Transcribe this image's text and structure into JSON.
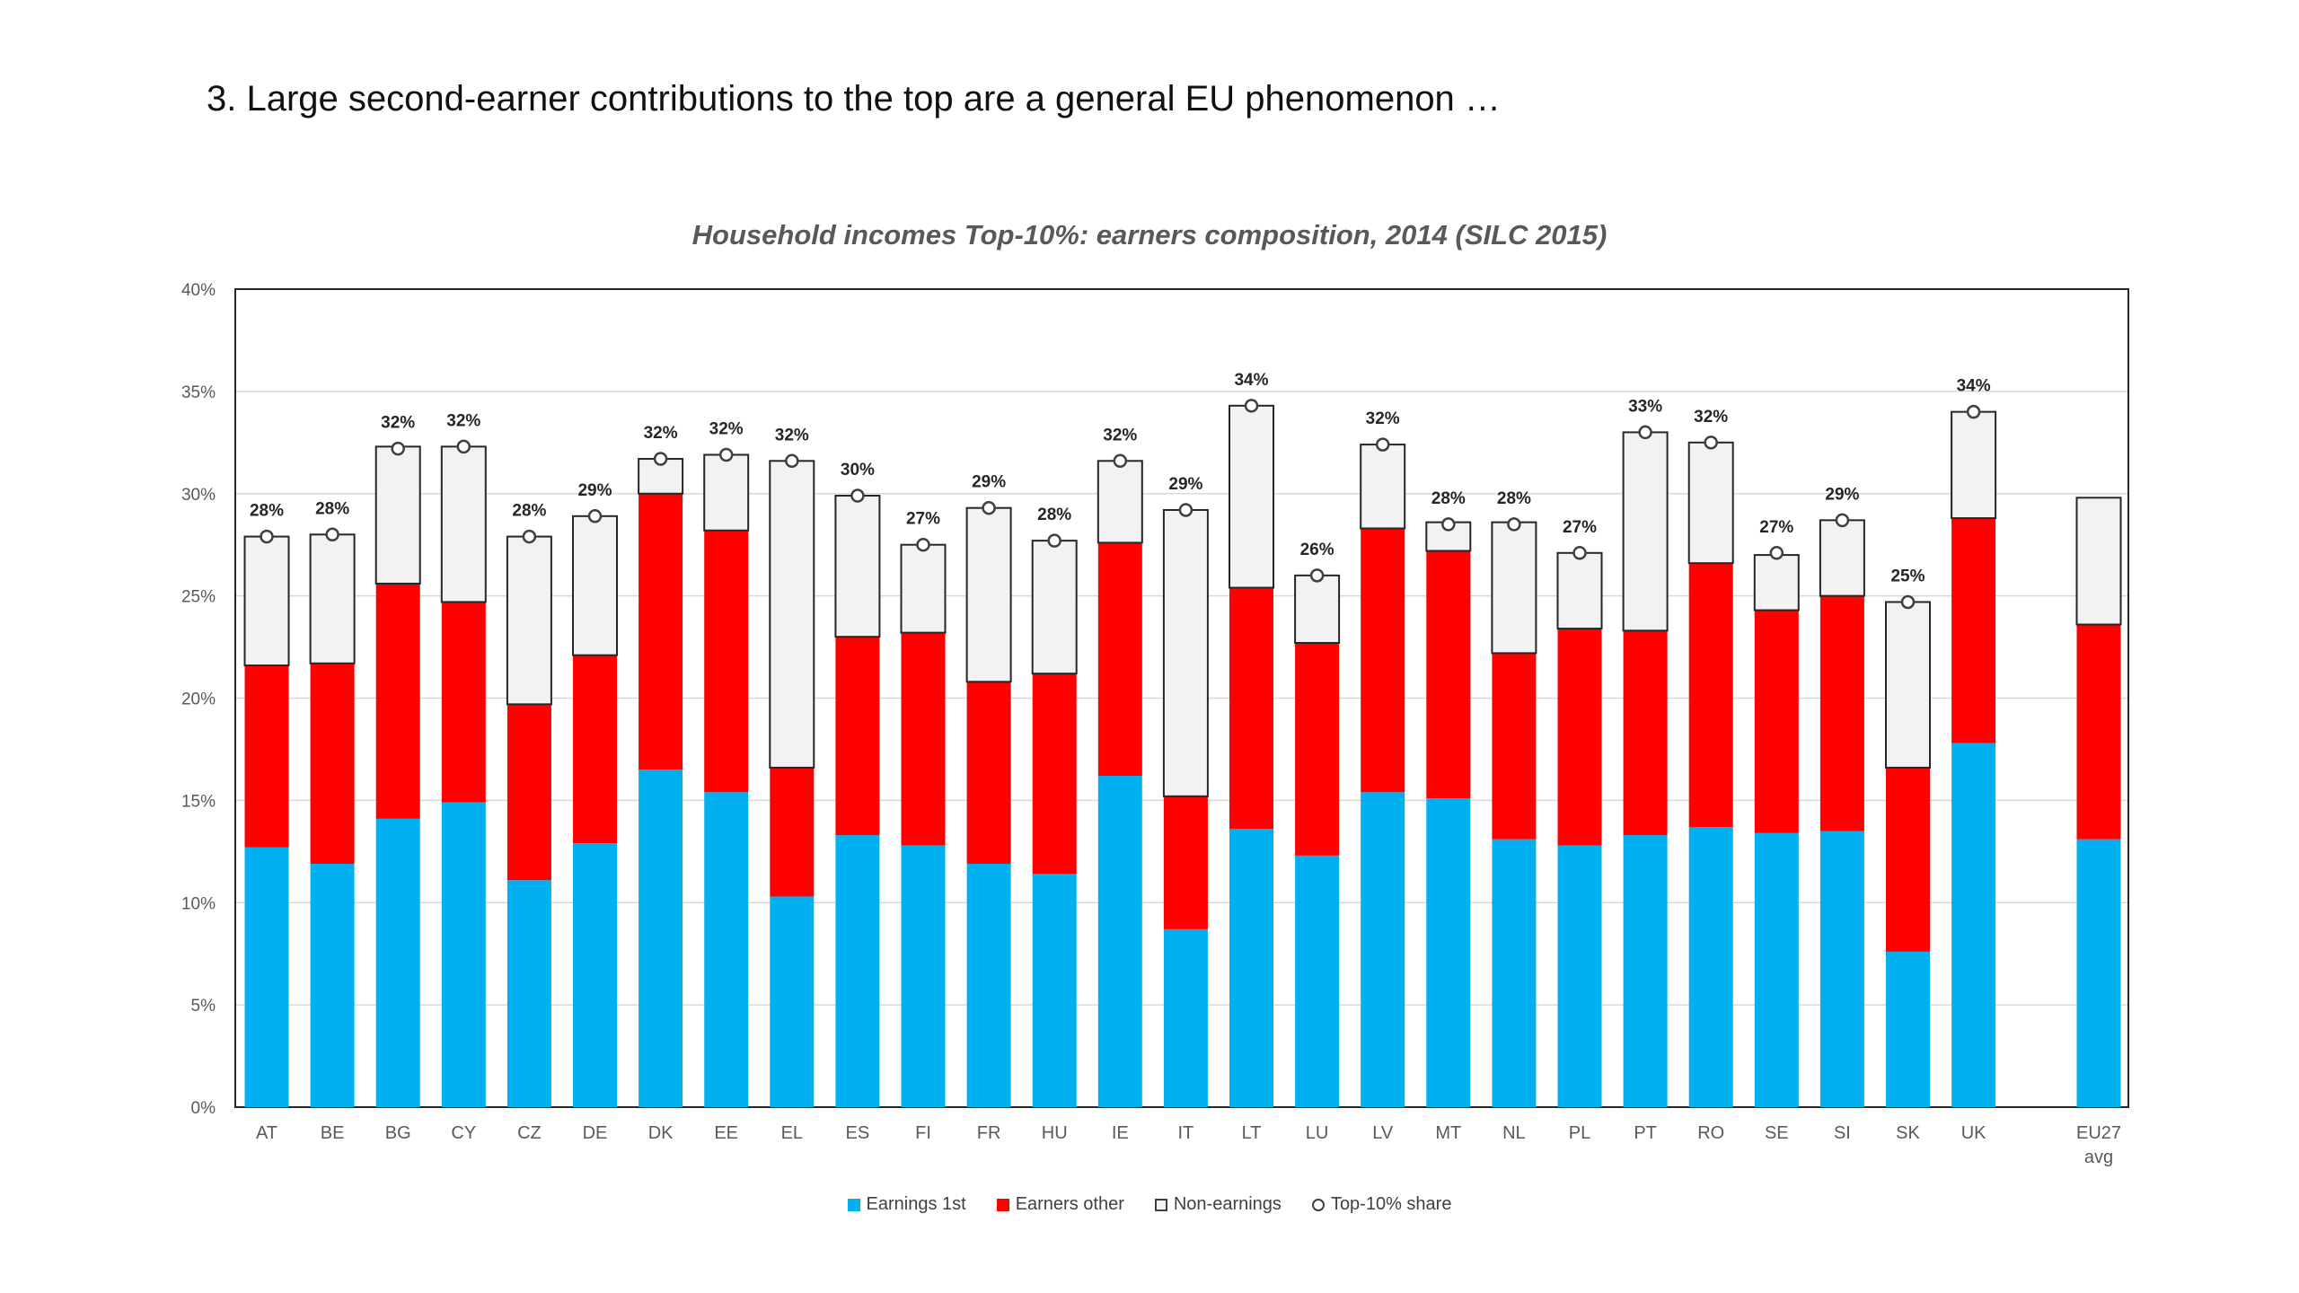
{
  "slide": {
    "title": "3. Large second-earner contributions to the top are a general EU phenomenon …"
  },
  "chart_data": {
    "type": "bar",
    "stacked": true,
    "title": "Household incomes Top-10%: earners composition, 2014 (SILC 2015)",
    "ylim": [
      0,
      40
    ],
    "yticks": [
      "0%",
      "5%",
      "10%",
      "15%",
      "20%",
      "25%",
      "30%",
      "35%",
      "40%"
    ],
    "grid": true,
    "legend_position": "bottom",
    "categories": [
      "AT",
      "BE",
      "BG",
      "CY",
      "CZ",
      "DE",
      "DK",
      "EE",
      "EL",
      "ES",
      "FI",
      "FR",
      "HU",
      "IE",
      "IT",
      "LT",
      "LU",
      "LV",
      "MT",
      "NL",
      "PL",
      "PT",
      "RO",
      "SE",
      "SI",
      "SK",
      "UK",
      "EU27 avg"
    ],
    "series": [
      {
        "name": "Earnings 1st",
        "color": "#00B0F0",
        "values": [
          12.7,
          11.9,
          14.1,
          14.9,
          11.1,
          12.9,
          16.5,
          15.4,
          10.3,
          13.3,
          12.8,
          11.9,
          11.4,
          16.2,
          8.7,
          13.6,
          12.3,
          15.4,
          15.1,
          13.1,
          12.8,
          13.3,
          13.7,
          13.4,
          13.5,
          7.6,
          17.8,
          13.1
        ]
      },
      {
        "name": "Earners other",
        "color": "#FF0000",
        "values": [
          8.9,
          9.8,
          11.5,
          9.8,
          8.6,
          9.2,
          13.5,
          12.8,
          6.3,
          9.7,
          10.4,
          8.9,
          9.8,
          11.4,
          6.5,
          11.8,
          10.4,
          12.9,
          12.1,
          9.1,
          10.6,
          10.0,
          12.9,
          10.9,
          11.5,
          9.0,
          11.0,
          10.5
        ]
      },
      {
        "name": "Non-earnings",
        "color": "#F2F2F2",
        "values": [
          6.3,
          6.3,
          6.7,
          7.6,
          8.2,
          6.8,
          1.7,
          3.7,
          15.0,
          6.9,
          4.3,
          8.5,
          6.5,
          4.0,
          14.0,
          8.9,
          3.3,
          4.1,
          1.4,
          6.4,
          3.7,
          9.7,
          5.9,
          2.7,
          3.7,
          8.1,
          5.2,
          6.2
        ]
      }
    ],
    "marker_series": {
      "name": "Top-10% share",
      "values": [
        27.9,
        28.0,
        32.2,
        32.3,
        27.9,
        28.9,
        31.7,
        31.9,
        31.6,
        29.9,
        27.5,
        29.3,
        27.7,
        31.6,
        29.2,
        34.3,
        26.0,
        32.4,
        28.5,
        28.5,
        27.1,
        33.0,
        32.5,
        27.1,
        28.7,
        24.7,
        34.0,
        null
      ],
      "labels": [
        "28%",
        "28%",
        "32%",
        "32%",
        "28%",
        "29%",
        "32%",
        "32%",
        "32%",
        "30%",
        "27%",
        "29%",
        "28%",
        "32%",
        "29%",
        "34%",
        "26%",
        "32%",
        "28%",
        "28%",
        "27%",
        "33%",
        "32%",
        "27%",
        "29%",
        "25%",
        "34%",
        ""
      ]
    }
  },
  "legend": {
    "items": [
      {
        "label": "Earnings 1st",
        "color": "#00B0F0"
      },
      {
        "label": "Earners other",
        "color": "#FF0000"
      },
      {
        "label": "Non-earnings",
        "color": "#F2F2F2"
      },
      {
        "label": "Top-10% share"
      }
    ]
  }
}
